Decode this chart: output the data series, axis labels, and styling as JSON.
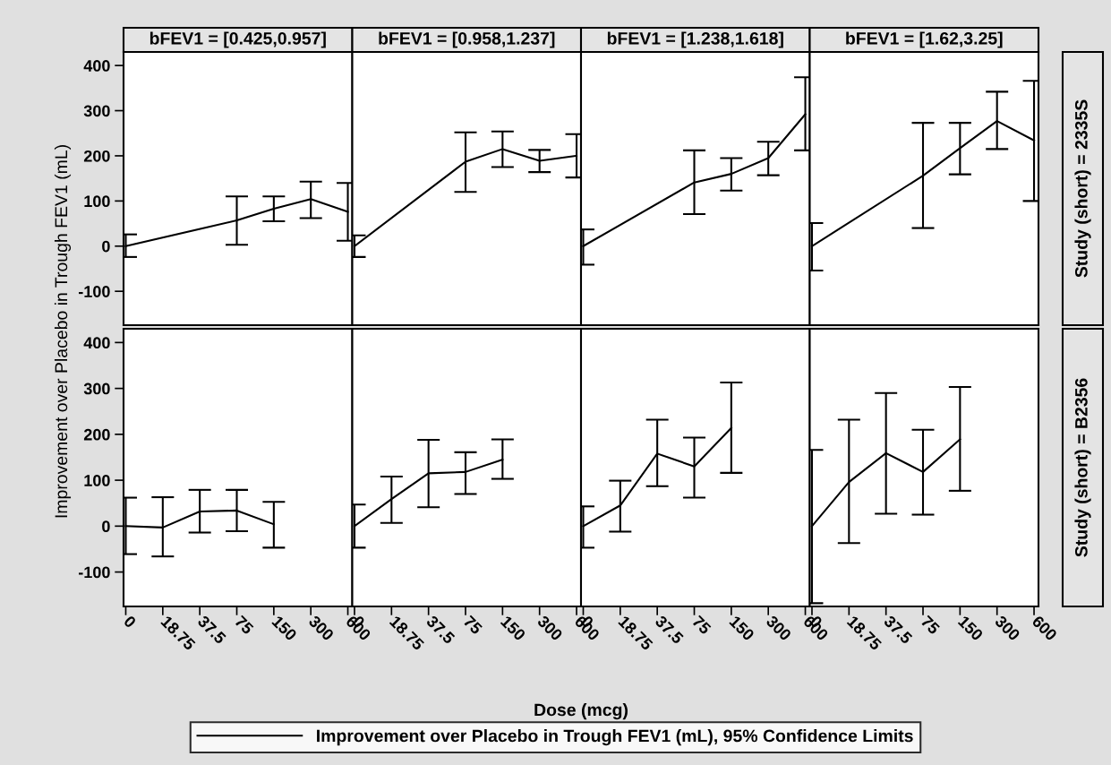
{
  "chart_data": [
    {
      "type": "line",
      "title": "bFEV1 = [0.425,0.957]",
      "ylabel": "Improvement over Placebo in Trough FEV1 (mL)",
      "categories": [
        "0",
        "18.75",
        "37.5",
        "75",
        "150",
        "300",
        "600"
      ],
      "legend": "bottom",
      "tick_labels": "y",
      "ylim": [
        -175,
        430
      ],
      "yticks": [
        -100,
        0,
        100,
        200,
        300,
        400
      ],
      "series": [
        {
          "name": "Improvement over Placebo in Trough FEV1 (mL), 95% Confidence Limits",
          "color": "#000000",
          "values": [
            0,
            null,
            null,
            57,
            83,
            104,
            76
          ],
          "errors": [
            [
              -24,
              26
            ],
            null,
            null,
            [
              3,
              110
            ],
            [
              55,
              110
            ],
            [
              62,
              143
            ],
            [
              12,
              140
            ]
          ]
        }
      ]
    },
    {
      "type": "line",
      "title": "bFEV1 = [0.958,1.237]",
      "categories": [
        "0",
        "18.75",
        "37.5",
        "75",
        "150",
        "300",
        "600"
      ],
      "tick_labels": false,
      "ylim": [
        -175,
        430
      ],
      "series": [
        {
          "color": "#000000",
          "values": [
            0,
            null,
            null,
            187,
            215,
            189,
            200
          ],
          "errors": [
            [
              -24,
              24
            ],
            null,
            null,
            [
              120,
              252
            ],
            [
              175,
              254
            ],
            [
              164,
              213
            ],
            [
              152,
              248
            ]
          ]
        }
      ]
    },
    {
      "type": "line",
      "title": "bFEV1 = [1.238,1.618]",
      "categories": [
        "0",
        "18.75",
        "37.5",
        "75",
        "150",
        "300",
        "600"
      ],
      "tick_labels": false,
      "ylim": [
        -175,
        430
      ],
      "series": [
        {
          "color": "#000000",
          "values": [
            0,
            null,
            null,
            141,
            160,
            195,
            292
          ],
          "errors": [
            [
              -41,
              37
            ],
            null,
            null,
            [
              71,
              212
            ],
            [
              123,
              195
            ],
            [
              157,
              231
            ],
            [
              212,
              374
            ]
          ]
        }
      ]
    },
    {
      "type": "line",
      "title": "bFEV1 = [1.62,3.25]",
      "y2label": "Study (short) = 2335S",
      "categories": [
        "0",
        "18.75",
        "37.5",
        "75",
        "150",
        "300",
        "600"
      ],
      "tick_labels": false,
      "ylim": [
        -175,
        430
      ],
      "series": [
        {
          "color": "#000000",
          "values": [
            0,
            null,
            null,
            156,
            217,
            277,
            234
          ],
          "errors": [
            [
              -54,
              51
            ],
            null,
            null,
            [
              40,
              273
            ],
            [
              159,
              273
            ],
            [
              215,
              342
            ],
            [
              100,
              366
            ]
          ]
        }
      ]
    },
    {
      "type": "line",
      "categories": [
        "0",
        "18.75",
        "37.5",
        "75",
        "150",
        "300",
        "600"
      ],
      "ylim": [
        -175,
        430
      ],
      "yticks": [
        -100,
        0,
        100,
        200,
        300,
        400
      ],
      "series": [
        {
          "color": "#000000",
          "values": [
            0,
            -3,
            32,
            34,
            4,
            null,
            null
          ],
          "errors": [
            [
              -61,
              62
            ],
            [
              -66,
              63
            ],
            [
              -14,
              79
            ],
            [
              -11,
              79
            ],
            [
              -47,
              53
            ],
            null,
            null
          ]
        }
      ]
    },
    {
      "type": "line",
      "xlabel": "Dose (mcg)",
      "categories": [
        "0",
        "18.75",
        "37.5",
        "75",
        "150",
        "300",
        "600"
      ],
      "tick_labels": "x",
      "ylim": [
        -175,
        430
      ],
      "series": [
        {
          "color": "#000000",
          "values": [
            0,
            59,
            115,
            118,
            145,
            null,
            null
          ],
          "errors": [
            [
              -47,
              47
            ],
            [
              7,
              108
            ],
            [
              41,
              188
            ],
            [
              70,
              161
            ],
            [
              103,
              189
            ],
            null,
            null
          ]
        }
      ]
    },
    {
      "type": "line",
      "categories": [
        "0",
        "18.75",
        "37.5",
        "75",
        "150",
        "300",
        "600"
      ],
      "tick_labels": "x",
      "ylim": [
        -175,
        430
      ],
      "series": [
        {
          "color": "#000000",
          "values": [
            0,
            45,
            158,
            130,
            214,
            null,
            null
          ],
          "errors": [
            [
              -47,
              43
            ],
            [
              -12,
              99
            ],
            [
              87,
              232
            ],
            [
              62,
              193
            ],
            [
              116,
              313
            ],
            null,
            null
          ]
        }
      ]
    },
    {
      "type": "line",
      "y2label": "Study (short) = B2356",
      "categories": [
        "0",
        "18.75",
        "37.5",
        "75",
        "150",
        "300",
        "600"
      ],
      "tick_labels": "x",
      "ylim": [
        -175,
        430
      ],
      "series": [
        {
          "color": "#000000",
          "values": [
            0,
            96,
            159,
            118,
            189,
            null,
            null
          ],
          "errors": [
            [
              -168,
              166
            ],
            [
              -37,
              232
            ],
            [
              27,
              290
            ],
            [
              25,
              210
            ],
            [
              77,
              303
            ],
            null,
            null
          ]
        }
      ]
    }
  ]
}
